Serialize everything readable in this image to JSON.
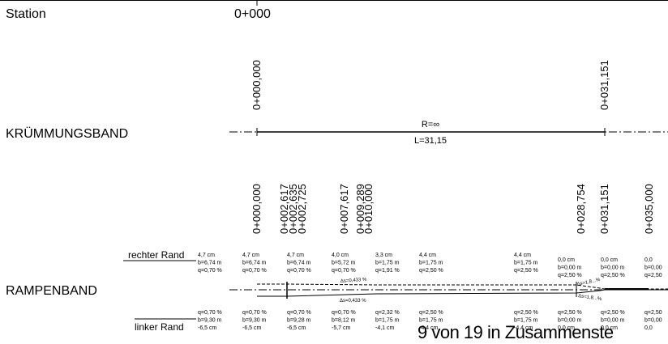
{
  "labels": {
    "station": "Station",
    "station_value": "0+000",
    "kruemmungsband": "KRÜMMUNGSBAND",
    "rampenband": "RAMPENBAND",
    "rechter_rand": "rechter Rand",
    "linker_rand": "linker Rand"
  },
  "curvature": {
    "stations": [
      "0+000,000",
      "0+031,151"
    ],
    "radius": "R=∞",
    "length": "L=31,15"
  },
  "ramp_stations": [
    "0+000,000",
    "0+002,617",
    "0+002,635",
    "0+002,725",
    "0+007,617",
    "0+009,289",
    "0+010,000",
    "0+028,754",
    "0+031,151",
    "0+035,000"
  ],
  "right_edge": [
    [
      "4,7 cm",
      "b=6,74 m",
      "q=0,70 %"
    ],
    [
      "4,7 cm",
      "b=6,74 m",
      "q=0,70 %"
    ],
    [
      "4,7 cm",
      "b=6,74 m",
      "q=0,70 %"
    ],
    [
      "4,0 cm",
      "b=5,72 m",
      "q=0,70 %"
    ],
    [
      "3,3 cm",
      "b=1,75 m",
      "q=1,91 %"
    ],
    [
      "4,4 cm",
      "b=1,75 m",
      "q=2,50 %"
    ],
    [
      "4,4 cm",
      "b=1,75 m",
      "q=2,50 %"
    ],
    [
      "0,0 cm",
      "b=0,00 m",
      "q=2,50 %"
    ],
    [
      "0,0 cm",
      "b=0,00 m",
      "q=2,50 %"
    ],
    [
      "0,0",
      "b=0,00",
      "q=2,50"
    ]
  ],
  "left_edge": [
    [
      "q=0,70 %",
      "b=9,30 m",
      "-6,5 cm"
    ],
    [
      "q=0,70 %",
      "b=9,30 m",
      "-6,5 cm"
    ],
    [
      "q=0,70 %",
      "b=9,28 m",
      "-6,5 cm"
    ],
    [
      "q=0,70 %",
      "b=8,12 m",
      "-5,7 cm"
    ],
    [
      "q=2,32 %",
      "b=1,75 m",
      "-4,1 cm"
    ],
    [
      "q=2,50 %",
      "b=1,75 m",
      "-4,4 cm"
    ],
    [
      "q=2,50 %",
      "b=1,75 m",
      "-4,4 cm"
    ],
    [
      "q=2,50 %",
      "b=0,00 m",
      "0,0 cm"
    ],
    [
      "q=2,50 %",
      "b=0,00 m",
      "0,0 cm"
    ],
    [
      "q=2,50",
      "b=0,00",
      "0,0"
    ]
  ],
  "slope_annotations": [
    "Δs=0,433 %",
    "Δs=0,433 %",
    "Δs=1,8...%",
    "Δs=1,8...%"
  ],
  "footer": "9 von 19 in Zusammenste"
}
